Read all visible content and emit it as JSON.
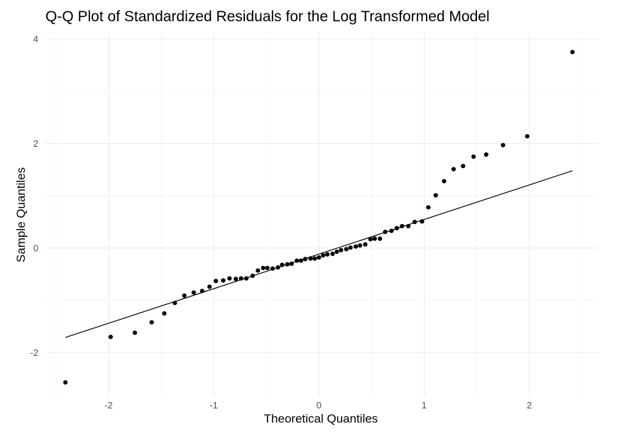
{
  "chart_data": {
    "type": "scatter",
    "title": "Q-Q Plot of Standardized Residuals for the Log Transformed Model",
    "xlabel": "Theoretical Quantiles",
    "ylabel": "Sample Quantiles",
    "xlim": [
      -2.6,
      2.65
    ],
    "ylim": [
      -2.85,
      4.15
    ],
    "x_ticks": [
      -2,
      -1,
      0,
      1,
      2
    ],
    "x_tick_labels": [
      "-2",
      "-1",
      "0",
      "1",
      "2"
    ],
    "y_ticks": [
      -2,
      0,
      2,
      4
    ],
    "y_tick_labels": [
      "-2",
      "0",
      "2",
      "4"
    ],
    "grid": true,
    "legend": "none",
    "reference_line": {
      "x": [
        -2.41,
        2.41
      ],
      "y": [
        -1.71,
        1.48
      ]
    },
    "points": [
      {
        "x": -2.41,
        "y": -2.57
      },
      {
        "x": -1.98,
        "y": -1.7
      },
      {
        "x": -1.75,
        "y": -1.62
      },
      {
        "x": -1.59,
        "y": -1.42
      },
      {
        "x": -1.47,
        "y": -1.25
      },
      {
        "x": -1.37,
        "y": -1.05
      },
      {
        "x": -1.28,
        "y": -0.91
      },
      {
        "x": -1.19,
        "y": -0.85
      },
      {
        "x": -1.11,
        "y": -0.82
      },
      {
        "x": -1.04,
        "y": -0.74
      },
      {
        "x": -0.98,
        "y": -0.63
      },
      {
        "x": -0.91,
        "y": -0.62
      },
      {
        "x": -0.85,
        "y": -0.58
      },
      {
        "x": -0.79,
        "y": -0.59
      },
      {
        "x": -0.74,
        "y": -0.58
      },
      {
        "x": -0.69,
        "y": -0.58
      },
      {
        "x": -0.63,
        "y": -0.53
      },
      {
        "x": -0.58,
        "y": -0.43
      },
      {
        "x": -0.53,
        "y": -0.38
      },
      {
        "x": -0.49,
        "y": -0.38
      },
      {
        "x": -0.44,
        "y": -0.39
      },
      {
        "x": -0.39,
        "y": -0.37
      },
      {
        "x": -0.35,
        "y": -0.32
      },
      {
        "x": -0.3,
        "y": -0.31
      },
      {
        "x": -0.26,
        "y": -0.3
      },
      {
        "x": -0.21,
        "y": -0.24
      },
      {
        "x": -0.17,
        "y": -0.24
      },
      {
        "x": -0.13,
        "y": -0.21
      },
      {
        "x": -0.08,
        "y": -0.2
      },
      {
        "x": -0.04,
        "y": -0.2
      },
      {
        "x": 0.0,
        "y": -0.18
      },
      {
        "x": 0.04,
        "y": -0.14
      },
      {
        "x": 0.08,
        "y": -0.12
      },
      {
        "x": 0.13,
        "y": -0.11
      },
      {
        "x": 0.17,
        "y": -0.07
      },
      {
        "x": 0.21,
        "y": -0.04
      },
      {
        "x": 0.26,
        "y": -0.02
      },
      {
        "x": 0.3,
        "y": 0.01
      },
      {
        "x": 0.35,
        "y": 0.03
      },
      {
        "x": 0.39,
        "y": 0.05
      },
      {
        "x": 0.44,
        "y": 0.07
      },
      {
        "x": 0.49,
        "y": 0.17
      },
      {
        "x": 0.53,
        "y": 0.18
      },
      {
        "x": 0.58,
        "y": 0.18
      },
      {
        "x": 0.63,
        "y": 0.31
      },
      {
        "x": 0.69,
        "y": 0.33
      },
      {
        "x": 0.74,
        "y": 0.38
      },
      {
        "x": 0.79,
        "y": 0.42
      },
      {
        "x": 0.85,
        "y": 0.42
      },
      {
        "x": 0.91,
        "y": 0.5
      },
      {
        "x": 0.98,
        "y": 0.51
      },
      {
        "x": 1.04,
        "y": 0.78
      },
      {
        "x": 1.11,
        "y": 1.01
      },
      {
        "x": 1.19,
        "y": 1.28
      },
      {
        "x": 1.28,
        "y": 1.51
      },
      {
        "x": 1.37,
        "y": 1.57
      },
      {
        "x": 1.47,
        "y": 1.75
      },
      {
        "x": 1.59,
        "y": 1.79
      },
      {
        "x": 1.75,
        "y": 1.97
      },
      {
        "x": 1.98,
        "y": 2.14
      },
      {
        "x": 2.41,
        "y": 3.75
      }
    ],
    "colors": {
      "points": "#000000",
      "line": "#000000",
      "grid": "#ebebeb",
      "tick_text": "#4d4d4d"
    }
  }
}
